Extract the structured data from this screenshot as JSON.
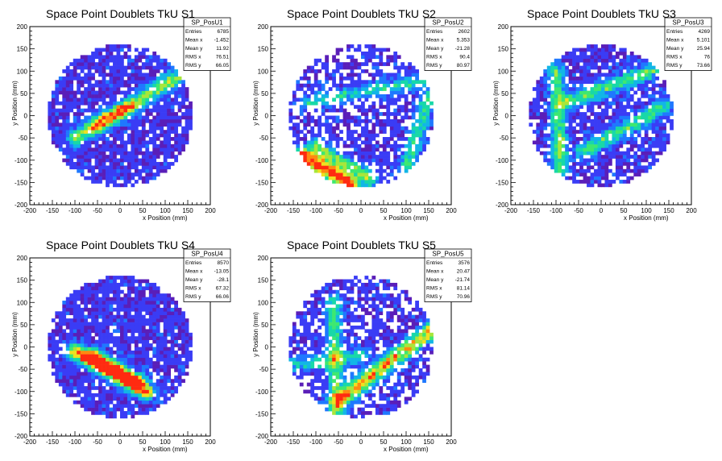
{
  "chart_data": [
    {
      "type": "heatmap",
      "title": "Space Point Doublets TkU S1",
      "xlabel": "x Position (mm)",
      "ylabel": "y Position (mm)",
      "xlim": [
        -200,
        200
      ],
      "ylim": [
        -200,
        200
      ],
      "xticks": [
        "-200",
        "-150",
        "-100",
        "-50",
        "0",
        "50",
        "100",
        "150",
        "200"
      ],
      "yticks": [
        "-200",
        "-150",
        "-100",
        "-50",
        "0",
        "50",
        "100",
        "150",
        "200"
      ],
      "stats": {
        "name": "SP_PosU1",
        "rows": [
          {
            "label": "Entries",
            "value": "6785"
          },
          {
            "label": "Mean x",
            "value": "-1.452"
          },
          {
            "label": "Mean y",
            "value": "11.92"
          },
          {
            "label": "RMS x",
            "value": "76.51"
          },
          {
            "label": "RMS y",
            "value": "66.05"
          }
        ]
      },
      "radius_mm": 160,
      "empty_fraction": 0.15,
      "tracks": [
        {
          "x1": -100,
          "y1": -50,
          "x2": 150,
          "y2": 100,
          "peak": 0.5
        },
        {
          "x1": -50,
          "y1": -20,
          "x2": 20,
          "y2": 20,
          "peak": 0.35
        }
      ]
    },
    {
      "type": "heatmap",
      "title": "Space Point Doublets TkU S2",
      "xlabel": "x Position (mm)",
      "ylabel": "y Position (mm)",
      "xlim": [
        -200,
        200
      ],
      "ylim": [
        -200,
        200
      ],
      "xticks": [
        "-200",
        "-150",
        "-100",
        "-50",
        "0",
        "50",
        "100",
        "150",
        "200"
      ],
      "yticks": [
        "-200",
        "-150",
        "-100",
        "-50",
        "0",
        "50",
        "100",
        "150",
        "200"
      ],
      "stats": {
        "name": "SP_PosU2",
        "rows": [
          {
            "label": "Entries",
            "value": "2602"
          },
          {
            "label": "Mean x",
            "value": "5.353"
          },
          {
            "label": "Mean y",
            "value": "-21.28"
          },
          {
            "label": "RMS x",
            "value": "90.4"
          },
          {
            "label": "RMS y",
            "value": "80.97"
          }
        ]
      },
      "radius_mm": 160,
      "empty_fraction": 0.42,
      "tracks": [
        {
          "x1": -130,
          "y1": -90,
          "x2": -20,
          "y2": -155,
          "peak": 0.95
        },
        {
          "x1": -100,
          "y1": -70,
          "x2": 20,
          "y2": -140,
          "peak": 0.45
        },
        {
          "x1": -120,
          "y1": 30,
          "x2": 150,
          "y2": 80,
          "peak": 0.3
        },
        {
          "x1": 100,
          "y1": -120,
          "x2": 150,
          "y2": 40,
          "peak": 0.35
        }
      ]
    },
    {
      "type": "heatmap",
      "title": "Space Point Doublets TkU S3",
      "xlabel": "x Position (mm)",
      "ylabel": "y Position (mm)",
      "xlim": [
        -200,
        200
      ],
      "ylim": [
        -200,
        200
      ],
      "xticks": [
        "-200",
        "-150",
        "-100",
        "-50",
        "0",
        "50",
        "100",
        "150",
        "200"
      ],
      "yticks": [
        "-200",
        "-150",
        "-100",
        "-50",
        "0",
        "50",
        "100",
        "150",
        "200"
      ],
      "stats": {
        "name": "SP_PosU3",
        "rows": [
          {
            "label": "Entries",
            "value": "4269"
          },
          {
            "label": "Mean x",
            "value": "5.101"
          },
          {
            "label": "Mean y",
            "value": "25.94"
          },
          {
            "label": "RMS x",
            "value": "76"
          },
          {
            "label": "RMS y",
            "value": "73.66"
          }
        ]
      },
      "radius_mm": 160,
      "empty_fraction": 0.22,
      "tracks": [
        {
          "x1": -100,
          "y1": 100,
          "x2": -90,
          "y2": -120,
          "peak": 0.45
        },
        {
          "x1": -80,
          "y1": 30,
          "x2": 140,
          "y2": 110,
          "peak": 0.4
        },
        {
          "x1": -40,
          "y1": -80,
          "x2": 140,
          "y2": 20,
          "peak": 0.4
        }
      ]
    },
    {
      "type": "heatmap",
      "title": "Space Point Doublets TkU S4",
      "xlabel": "x Position (mm)",
      "ylabel": "y Position (mm)",
      "xlim": [
        -200,
        200
      ],
      "ylim": [
        -200,
        200
      ],
      "xticks": [
        "-200",
        "-150",
        "-100",
        "-50",
        "0",
        "50",
        "100",
        "150",
        "200"
      ],
      "yticks": [
        "-200",
        "-150",
        "-100",
        "-50",
        "0",
        "50",
        "100",
        "150",
        "200"
      ],
      "stats": {
        "name": "SP_PosU4",
        "rows": [
          {
            "label": "Entries",
            "value": "8570"
          },
          {
            "label": "Mean x",
            "value": "-13.05"
          },
          {
            "label": "Mean y",
            "value": "-28.1"
          },
          {
            "label": "RMS x",
            "value": "67.32"
          },
          {
            "label": "RMS y",
            "value": "66.06"
          }
        ]
      },
      "radius_mm": 160,
      "empty_fraction": 0.12,
      "tracks": [
        {
          "x1": -100,
          "y1": -10,
          "x2": 60,
          "y2": -100,
          "peak": 0.75
        },
        {
          "x1": -60,
          "y1": -20,
          "x2": 40,
          "y2": -80,
          "peak": 0.6
        }
      ]
    },
    {
      "type": "heatmap",
      "title": "Space Point Doublets TkU S5",
      "xlabel": "x Position (mm)",
      "ylabel": "y Position (mm)",
      "xlim": [
        -200,
        200
      ],
      "ylim": [
        -200,
        200
      ],
      "xticks": [
        "-200",
        "-150",
        "-100",
        "-50",
        "0",
        "50",
        "100",
        "150",
        "200"
      ],
      "yticks": [
        "-200",
        "-150",
        "-100",
        "-50",
        "0",
        "50",
        "100",
        "150",
        "200"
      ],
      "stats": {
        "name": "SP_PosU5",
        "rows": [
          {
            "label": "Entries",
            "value": "3576"
          },
          {
            "label": "Mean x",
            "value": "20.47"
          },
          {
            "label": "Mean y",
            "value": "-21.74"
          },
          {
            "label": "RMS x",
            "value": "81.14"
          },
          {
            "label": "RMS y",
            "value": "70.96"
          }
        ]
      },
      "radius_mm": 160,
      "empty_fraction": 0.35,
      "tracks": [
        {
          "x1": -50,
          "y1": -120,
          "x2": 160,
          "y2": 40,
          "peak": 0.7
        },
        {
          "x1": -60,
          "y1": 100,
          "x2": -55,
          "y2": -150,
          "peak": 0.4
        },
        {
          "x1": -150,
          "y1": -40,
          "x2": 0,
          "y2": -20,
          "peak": 0.3
        }
      ]
    }
  ],
  "colors": {
    "palette": [
      "#5a1eb8",
      "#3a3cf5",
      "#1f78ff",
      "#12b6e6",
      "#18d8a8",
      "#3ee870",
      "#a8e63a",
      "#f0e020",
      "#ff8a10",
      "#ff2a10"
    ],
    "frame": "#000000",
    "background": "#ffffff"
  }
}
